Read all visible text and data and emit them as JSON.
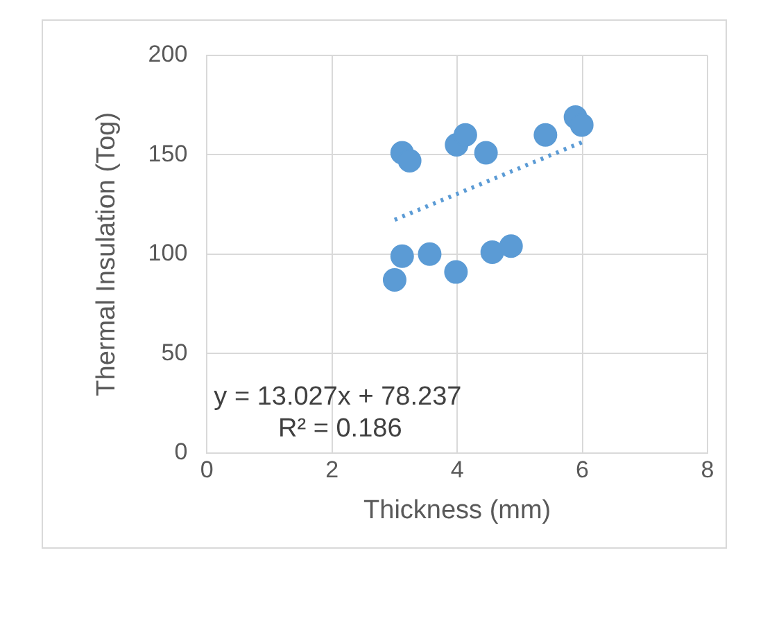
{
  "chart_data": {
    "type": "scatter",
    "xlabel": "Thickness (mm)",
    "ylabel": "Thermal Insulation (Tog)",
    "xlim": [
      0,
      8
    ],
    "xticks": [
      0,
      2,
      4,
      6,
      8
    ],
    "ylim": [
      0,
      200
    ],
    "yticks": [
      0,
      50,
      100,
      150,
      200
    ],
    "grid": true,
    "legend": false,
    "series": [
      {
        "marker": "circle",
        "color": "#5b9bd5",
        "x": [
          3.12,
          3.24,
          3.99,
          4.13,
          4.46,
          5.41,
          5.89,
          5.99,
          3.12,
          3.56,
          3.0,
          3.98,
          4.56,
          4.86
        ],
        "values": [
          151,
          147,
          155,
          160,
          151,
          160,
          169,
          165,
          99,
          100,
          87,
          91,
          101,
          104
        ]
      },
      {
        "type": "line",
        "marker": "none",
        "line_style": "dotted",
        "color": "#5b9bd5",
        "x": [
          3.0,
          6.0
        ],
        "values": [
          117.3,
          156.4
        ]
      }
    ],
    "annotations": [
      "y = 13.027x + 78.237",
      "R² = 0.186"
    ]
  }
}
